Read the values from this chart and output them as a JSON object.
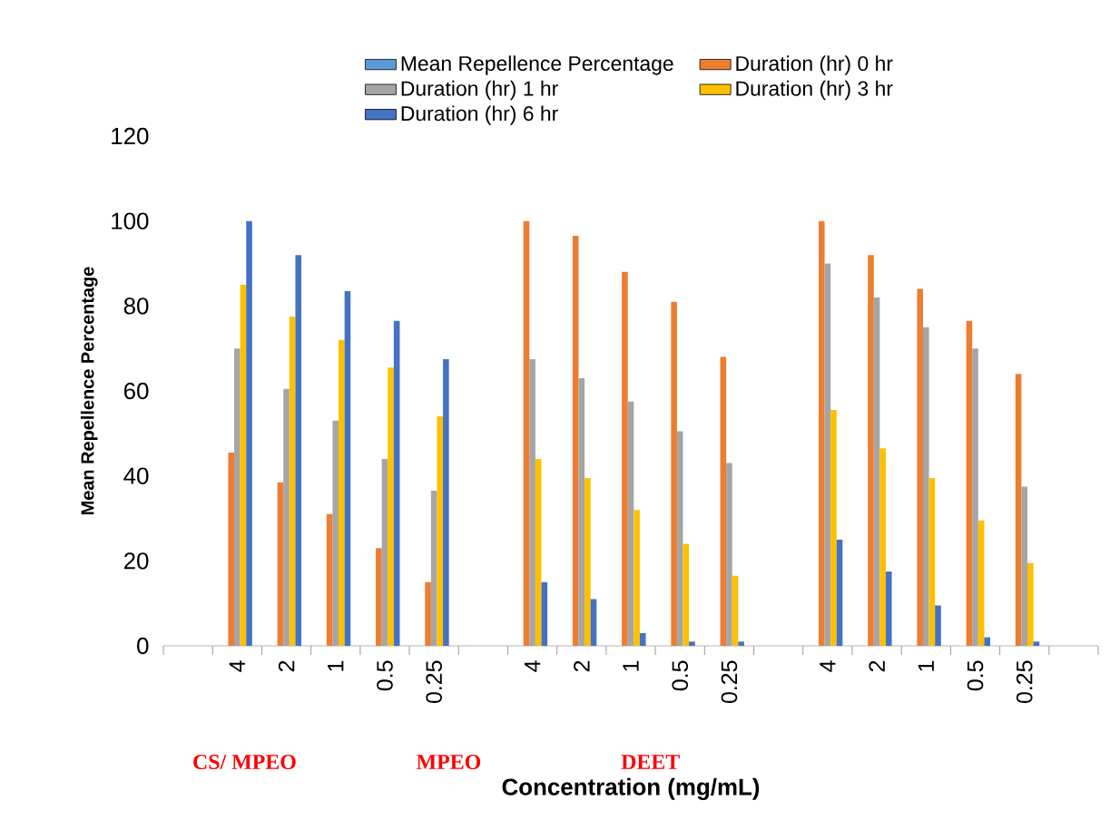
{
  "chart_data": {
    "type": "bar",
    "xlabel": "Concentration (mg/mL)",
    "ylabel": "Mean Repellence Percentage",
    "categories": [
      null,
      "4",
      "2",
      "1",
      "0.5",
      "0.25",
      null,
      "4",
      "2",
      "1",
      "0.5",
      "0.25",
      null,
      "4",
      "2",
      "1",
      "0.5",
      "0.25",
      null
    ],
    "series": [
      {
        "name": "Mean Repellence Percentage",
        "color": "#5b9bd5",
        "values": [
          null,
          null,
          null,
          null,
          null,
          null,
          null,
          null,
          null,
          null,
          null,
          null,
          null,
          null,
          null,
          null,
          null,
          null,
          null
        ]
      },
      {
        "name": "Duration (hr) 0 hr",
        "color": "#ed7d31",
        "values": [
          null,
          45.5,
          38.5,
          31,
          23,
          15,
          null,
          100,
          96.5,
          88,
          81,
          68,
          null,
          100,
          92,
          84,
          76.5,
          64,
          null
        ]
      },
      {
        "name": "Duration (hr) 1 hr",
        "color": "#a5a5a5",
        "values": [
          null,
          70,
          60.5,
          53,
          44,
          36.5,
          null,
          67.5,
          63,
          57.5,
          50.5,
          43,
          null,
          90,
          82,
          75,
          70,
          37.5,
          null
        ]
      },
      {
        "name": "Duration (hr) 3 hr",
        "color": "#ffc000",
        "values": [
          null,
          85,
          77.5,
          72,
          65.5,
          54,
          null,
          44,
          39.5,
          32,
          24,
          16.5,
          null,
          55.5,
          46.5,
          39.5,
          29.5,
          19.5,
          null
        ]
      },
      {
        "name": "Duration (hr) 6 hr",
        "color": "#4472c4",
        "values": [
          null,
          100,
          92,
          83.5,
          76.5,
          67.5,
          null,
          15,
          11,
          3,
          1,
          1,
          null,
          25,
          17.5,
          9.5,
          2,
          1,
          null
        ]
      }
    ],
    "ylim": [
      0,
      120
    ],
    "yticks": [
      0,
      20,
      40,
      60,
      80,
      100,
      120
    ],
    "legend": "top",
    "annotations": [
      "CS/ MPEO",
      "MPEO",
      "DEET"
    ]
  }
}
